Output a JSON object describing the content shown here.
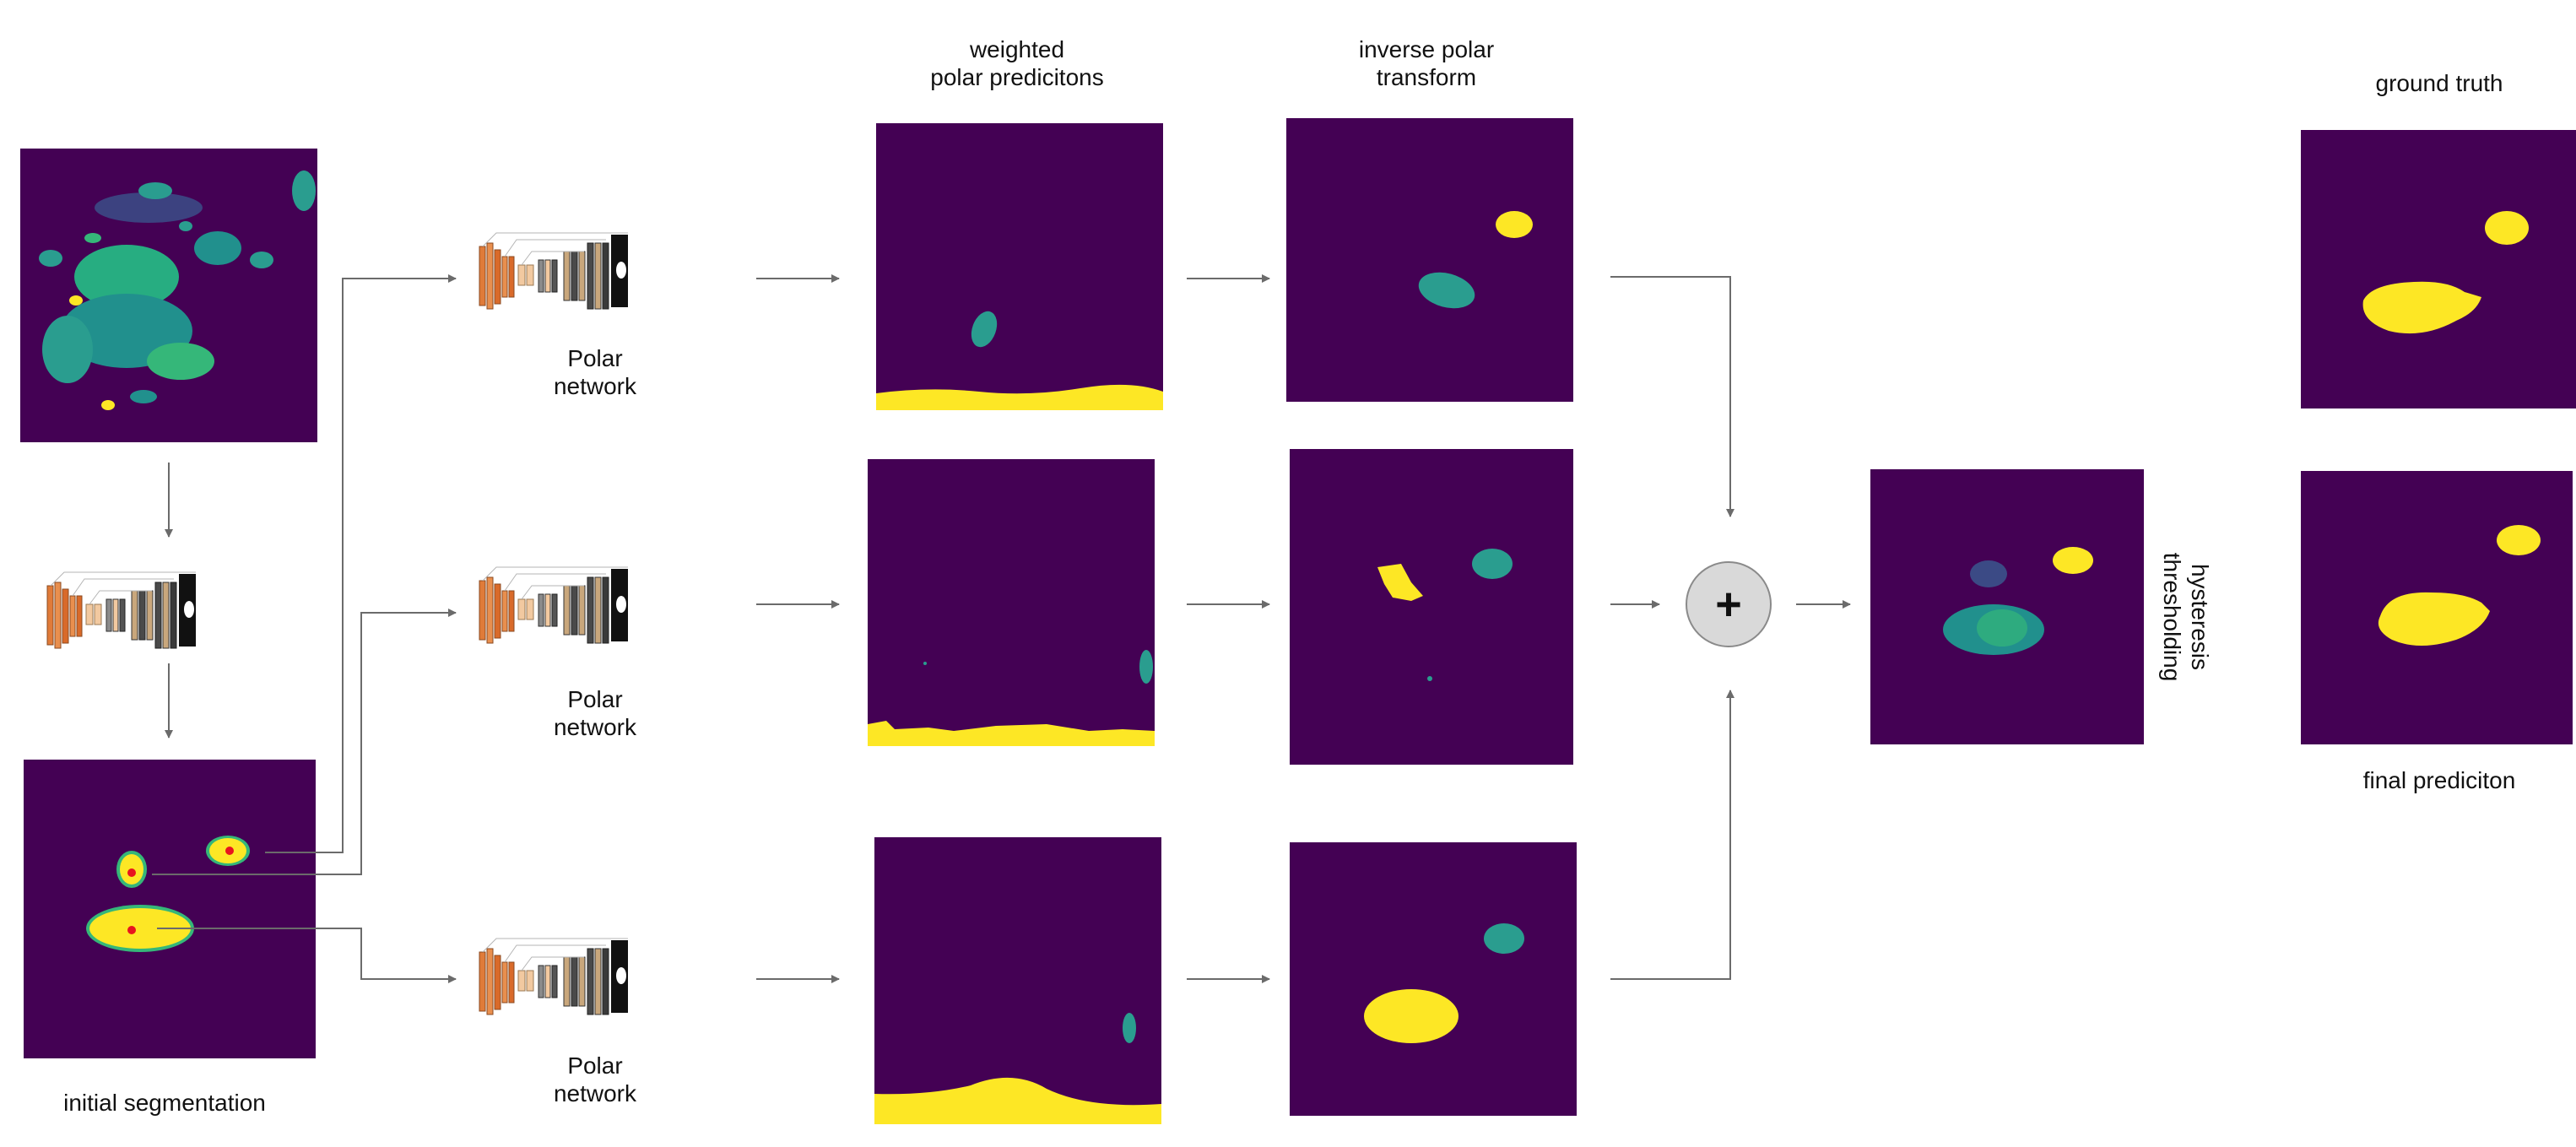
{
  "labels": {
    "initial_segmentation": "initial segmentation",
    "polar_network": "Polar\nnetwork",
    "weighted_polar_predictions": "weighted\npolar predicitons",
    "inverse_polar_transform": "inverse polar\ntransform",
    "ground_truth": "ground truth",
    "final_prediction": "final prediciton",
    "hysteresis_thresholding": "hysteresis\nthresholding",
    "sum_operator": "+"
  },
  "colors": {
    "background_purple": "#440154",
    "teal": "#2a9d8f",
    "teal_dark": "#21908d",
    "teal_light": "#35b779",
    "yellow": "#fde725",
    "arrow_gray": "#6b6b6b",
    "seed_red": "#e8141e",
    "network_orange": "#e07b39",
    "network_tan": "#f2c9a0",
    "network_dark": "#3a3a3a",
    "sum_circle_fill": "#d9d9d9"
  }
}
